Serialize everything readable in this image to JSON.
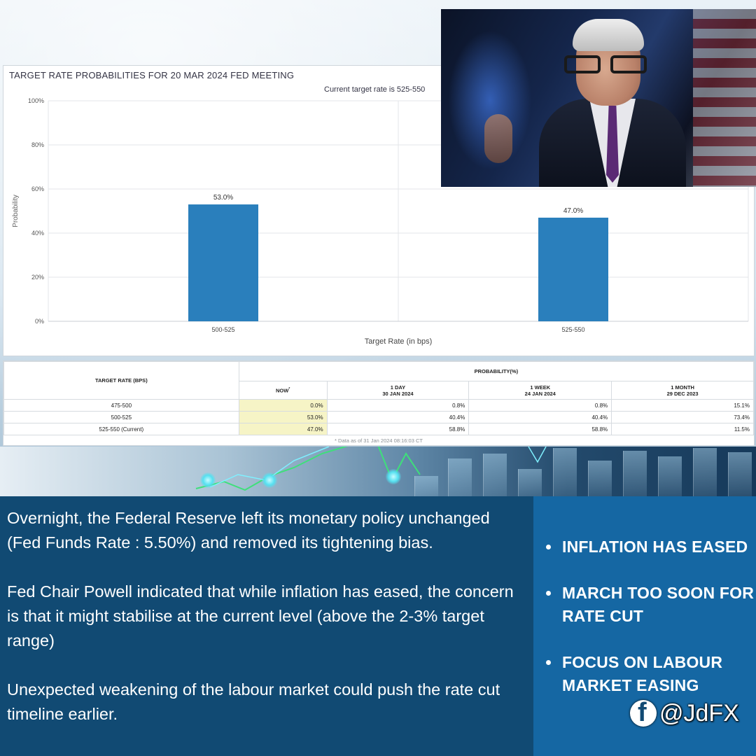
{
  "chart_data": {
    "type": "bar",
    "title": "TARGET RATE PROBABILITIES FOR 20 MAR 2024 FED MEETING",
    "subtitle": "Current target rate is 525-550",
    "categories": [
      "500-525",
      "525-550"
    ],
    "values": [
      53.0,
      47.0
    ],
    "data_labels": [
      "53.0%",
      "47.0%"
    ],
    "xlabel": "Target Rate (in bps)",
    "ylabel": "Probability",
    "ylim": [
      0,
      100
    ],
    "y_ticks": [
      "0%",
      "20%",
      "40%",
      "60%",
      "80%",
      "100%"
    ],
    "y_tick_values": [
      0,
      20,
      40,
      60,
      80,
      100
    ],
    "grid": true,
    "bar_color": "#2a7fbc"
  },
  "table": {
    "target_header": "TARGET RATE (BPS)",
    "probability_header": "PROBABILITY(%)",
    "columns": [
      {
        "label": "NOW",
        "marker": "*",
        "date": ""
      },
      {
        "label": "1 DAY",
        "date": "30 JAN 2024"
      },
      {
        "label": "1 WEEK",
        "date": "24 JAN 2024"
      },
      {
        "label": "1 MONTH",
        "date": "29 DEC 2023"
      }
    ],
    "rows": [
      {
        "rate": "475-500",
        "values": [
          "0.0%",
          "0.8%",
          "0.8%",
          "15.1%"
        ]
      },
      {
        "rate": "500-525",
        "values": [
          "53.0%",
          "40.4%",
          "40.4%",
          "73.4%"
        ]
      },
      {
        "rate": "525-550 (Current)",
        "values": [
          "47.0%",
          "58.8%",
          "58.8%",
          "11.5%"
        ]
      }
    ],
    "footnote": "* Data as of 31 Jan 2024 08:16:03 CT",
    "now_highlight_color": "#f6f4c6"
  },
  "text": {
    "paragraphs": [
      "Overnight, the Federal Reserve left its monetary policy unchanged (Fed Funds Rate : 5.50%) and removed its tightening bias.",
      "Fed Chair Powell indicated that while inflation has eased, the concern is that it might stabilise at the current level (above the 2-3% target range)",
      "Unexpected weakening of the labour market could push the rate cut timeline earlier."
    ],
    "bullets": [
      "INFLATION HAS EASED",
      "MARCH TOO SOON FOR RATE CUT",
      "FOCUS ON LABOUR MARKET EASING"
    ]
  },
  "branding": {
    "handle": "@JdFX",
    "icon": "facebook-icon"
  },
  "colors": {
    "left_panel": "#114a73",
    "right_panel": "#1567a3"
  }
}
